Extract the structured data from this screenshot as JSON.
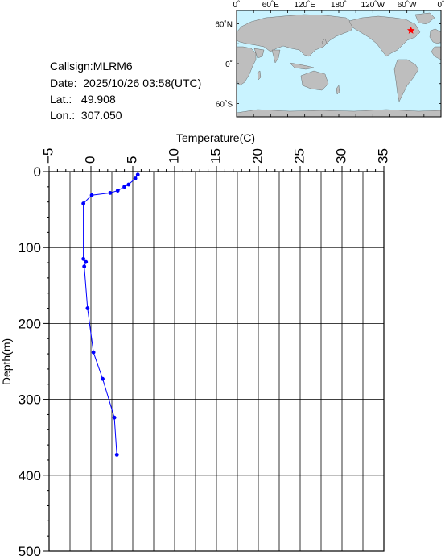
{
  "station": {
    "callsign": "Callsign:MLRM6",
    "date": "Date:  2025/10/26 03:58(UTC)",
    "lat_label": "Lat.:",
    "lat_value": "49.908",
    "lon_label": "Lon.:",
    "lon_value": "307.050"
  },
  "map": {
    "lon_labels": [
      "0˚",
      "60˚E",
      "120˚E",
      "180˚",
      "120˚W",
      "60˚W",
      "0˚"
    ],
    "lat_labels": [
      "60˚N",
      "0˚",
      "60˚S"
    ],
    "ocean_color": "#c9f3ff",
    "land_color": "#bebebe",
    "marker_color": "#ff0000",
    "marker": {
      "lon": 307.05,
      "lat": 49.908
    }
  },
  "chart_data": {
    "type": "line",
    "title": "",
    "xlabel": "Temperature(C)",
    "ylabel": "Depth(m)",
    "xlim": [
      -5,
      35
    ],
    "ylim": [
      0,
      500
    ],
    "x_ticks": [
      "−5",
      "0",
      "5",
      "10",
      "15",
      "20",
      "25",
      "30",
      "35"
    ],
    "y_ticks": [
      "0",
      "100",
      "200",
      "300",
      "400",
      "500"
    ],
    "grid": true,
    "series": [
      {
        "name": "",
        "color": "#0000ff",
        "points": [
          {
            "temp": 5.6,
            "depth": 4
          },
          {
            "temp": 5.3,
            "depth": 9
          },
          {
            "temp": 4.5,
            "depth": 17
          },
          {
            "temp": 4.0,
            "depth": 20
          },
          {
            "temp": 3.2,
            "depth": 25
          },
          {
            "temp": 2.3,
            "depth": 28
          },
          {
            "temp": 0.1,
            "depth": 31
          },
          {
            "temp": -0.9,
            "depth": 42
          },
          {
            "temp": -0.9,
            "depth": 115
          },
          {
            "temp": -0.6,
            "depth": 119
          },
          {
            "temp": -0.8,
            "depth": 125
          },
          {
            "temp": -0.4,
            "depth": 180
          },
          {
            "temp": 0.3,
            "depth": 238
          },
          {
            "temp": 1.4,
            "depth": 273
          },
          {
            "temp": 2.8,
            "depth": 324
          },
          {
            "temp": 3.1,
            "depth": 373
          }
        ]
      }
    ]
  }
}
